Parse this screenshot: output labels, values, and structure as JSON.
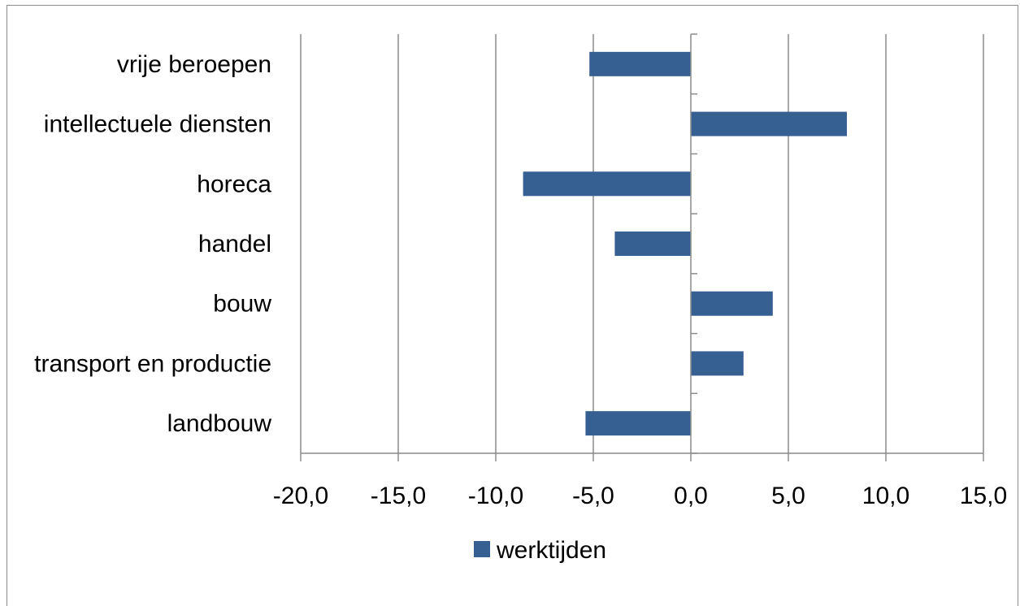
{
  "chart_data": {
    "type": "bar",
    "orientation": "horizontal",
    "categories": [
      "landbouw",
      "transport en productie",
      "bouw",
      "handel",
      "horeca",
      "intellectuele diensten",
      "vrije beroepen"
    ],
    "series": [
      {
        "name": "werktijden",
        "color": "#376092",
        "values": [
          -5.4,
          2.7,
          4.2,
          -3.9,
          -8.6,
          8.0,
          -5.2
        ]
      }
    ],
    "x_ticks": [
      "-20,0",
      "-15,0",
      "-10,0",
      "-5,0",
      "0,0",
      "5,0",
      "10,0",
      "15,0"
    ],
    "xlim": [
      -20,
      15
    ],
    "grid": "vertical",
    "legend_position": "bottom",
    "title": "",
    "xlabel": "",
    "ylabel": ""
  }
}
